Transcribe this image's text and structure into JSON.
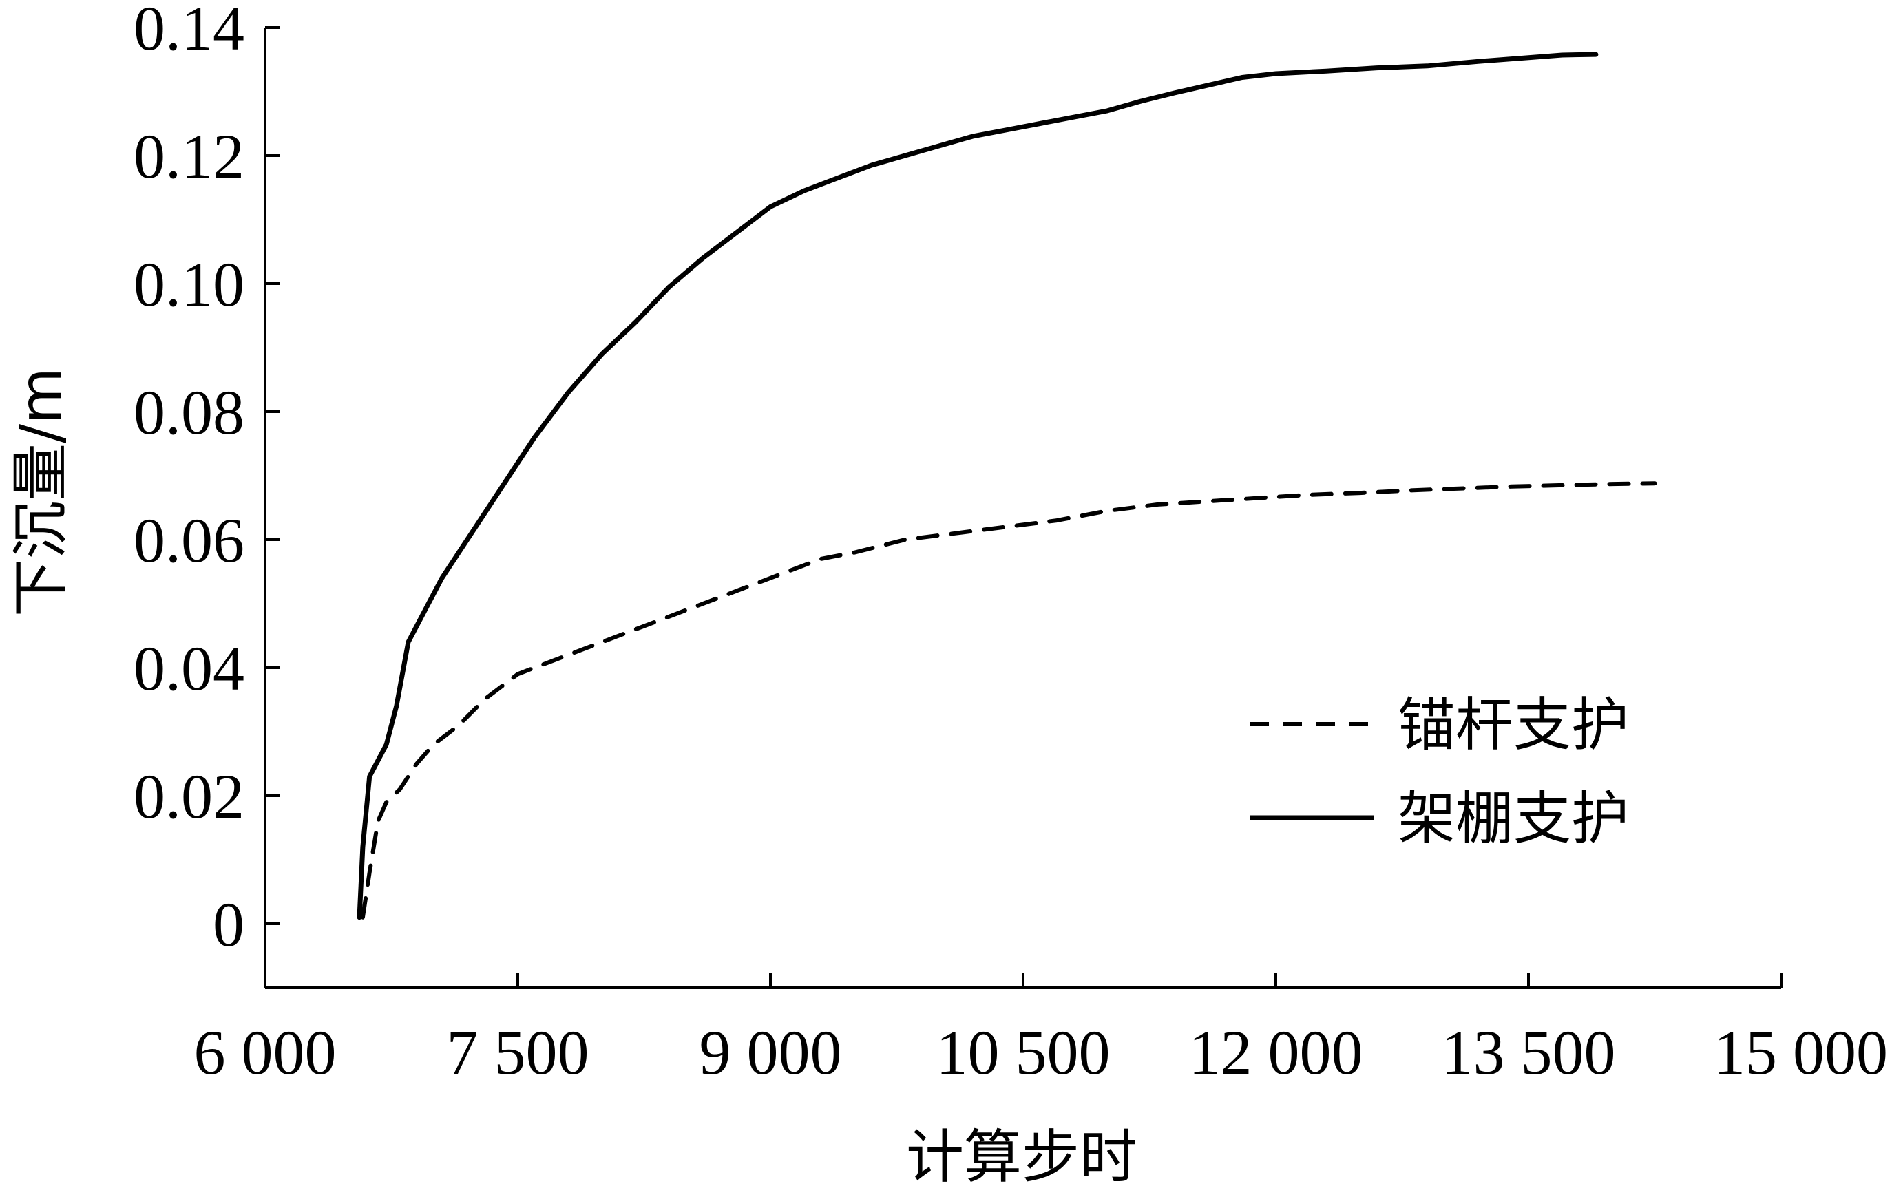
{
  "chart_data": {
    "type": "line",
    "title": "",
    "xlabel": "计算步时",
    "ylabel": "下沉量/m",
    "xlim": [
      6000,
      15000
    ],
    "ylim": [
      -0.01,
      0.14
    ],
    "x_ticks": [
      6000,
      7500,
      9000,
      10500,
      12000,
      13500,
      15000
    ],
    "x_tick_labels": [
      "6 000",
      "7 500",
      "9 000",
      "10 500",
      "12 000",
      "13 500",
      "15 000"
    ],
    "y_ticks": [
      0,
      0.02,
      0.04,
      0.06,
      0.08,
      0.1,
      0.12,
      0.14
    ],
    "y_tick_labels": [
      "0",
      "0.02",
      "0.04",
      "0.06",
      "0.08",
      "0.10",
      "0.12",
      "0.14"
    ],
    "grid": false,
    "legend_position": "bottom-right",
    "series": [
      {
        "name": "锚杆支护",
        "style": "dashed",
        "color": "#000000",
        "x": [
          6580,
          6620,
          6670,
          6720,
          6800,
          6900,
          7000,
          7150,
          7300,
          7500,
          7700,
          7900,
          8100,
          8300,
          8500,
          8700,
          8900,
          9100,
          9300,
          9500,
          9800,
          10100,
          10400,
          10700,
          11000,
          11300,
          11600,
          11900,
          12200,
          12500,
          12800,
          13100,
          13400,
          13700,
          14000,
          14250
        ],
        "values": [
          0.001,
          0.008,
          0.016,
          0.019,
          0.021,
          0.025,
          0.028,
          0.031,
          0.035,
          0.039,
          0.041,
          0.043,
          0.045,
          0.047,
          0.049,
          0.051,
          0.053,
          0.055,
          0.057,
          0.058,
          0.06,
          0.061,
          0.062,
          0.063,
          0.0645,
          0.0655,
          0.066,
          0.0665,
          0.067,
          0.0673,
          0.0677,
          0.068,
          0.0683,
          0.0685,
          0.0687,
          0.0688
        ]
      },
      {
        "name": "架棚支护",
        "style": "solid",
        "color": "#000000",
        "x": [
          6560,
          6580,
          6620,
          6680,
          6720,
          6780,
          6850,
          6950,
          7050,
          7150,
          7300,
          7450,
          7600,
          7800,
          8000,
          8200,
          8400,
          8600,
          8800,
          9000,
          9200,
          9400,
          9600,
          9800,
          10000,
          10200,
          10400,
          10600,
          10800,
          11000,
          11200,
          11400,
          11600,
          11800,
          12000,
          12300,
          12600,
          12900,
          13200,
          13500,
          13700,
          13900
        ],
        "values": [
          0.001,
          0.012,
          0.023,
          0.026,
          0.028,
          0.034,
          0.044,
          0.049,
          0.054,
          0.058,
          0.064,
          0.07,
          0.076,
          0.083,
          0.089,
          0.094,
          0.0995,
          0.104,
          0.108,
          0.112,
          0.1145,
          0.1165,
          0.1185,
          0.12,
          0.1215,
          0.123,
          0.124,
          0.125,
          0.126,
          0.127,
          0.1285,
          0.1298,
          0.131,
          0.1322,
          0.1328,
          0.1332,
          0.1337,
          0.134,
          0.1347,
          0.1353,
          0.1357,
          0.1358
        ]
      }
    ]
  }
}
